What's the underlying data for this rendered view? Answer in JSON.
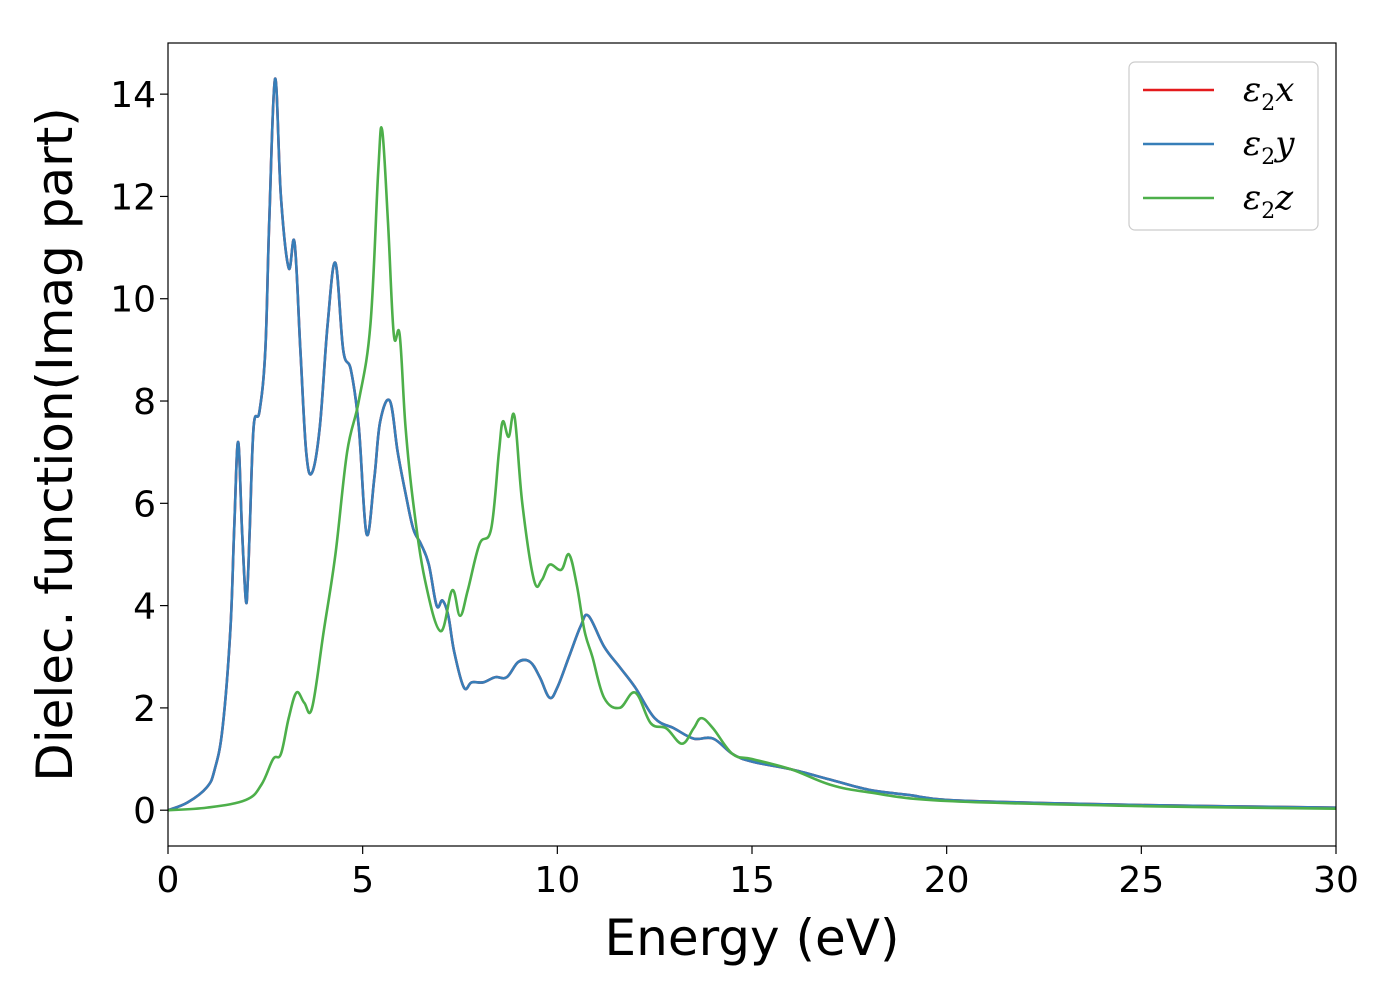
{
  "chart_data": {
    "type": "line",
    "title": "",
    "xlabel": "Energy (eV)",
    "ylabel": "Dielec. function(Imag part)",
    "xlim": [
      0,
      30
    ],
    "ylim": [
      -0.7,
      15
    ],
    "xticks": [
      0,
      5,
      10,
      15,
      20,
      25,
      30
    ],
    "yticks": [
      0,
      2,
      4,
      6,
      8,
      10,
      12,
      14
    ],
    "grid": false,
    "legend_position": "top-right",
    "legend": [
      {
        "symbol": "ε",
        "sub": "2",
        "axis": "x"
      },
      {
        "symbol": "ε",
        "sub": "2",
        "axis": "y"
      },
      {
        "symbol": "ε",
        "sub": "2",
        "axis": "z"
      }
    ],
    "series": [
      {
        "name": "ε2x",
        "color": "#e41a1c",
        "x": [
          0,
          0.5,
          1.0,
          1.2,
          1.4,
          1.6,
          1.7,
          1.8,
          1.9,
          2.0,
          2.05,
          2.1,
          2.2,
          2.35,
          2.5,
          2.6,
          2.75,
          2.9,
          3.1,
          3.25,
          3.4,
          3.55,
          3.7,
          3.9,
          4.1,
          4.3,
          4.5,
          4.7,
          4.9,
          5.1,
          5.3,
          5.45,
          5.7,
          5.9,
          6.1,
          6.3,
          6.5,
          6.7,
          6.9,
          7.05,
          7.2,
          7.35,
          7.6,
          7.8,
          8.1,
          8.4,
          8.7,
          9.0,
          9.3,
          9.55,
          9.8,
          10.0,
          10.3,
          10.6,
          10.8,
          11.2,
          11.6,
          12.0,
          12.5,
          13.0,
          13.5,
          14.0,
          14.5,
          15.0,
          16.0,
          17.0,
          18.0,
          19.0,
          20.0,
          22.0,
          25.0,
          30.0
        ],
        "y": [
          0,
          0.15,
          0.45,
          0.8,
          1.6,
          3.5,
          5.5,
          7.2,
          5.5,
          4.1,
          4.5,
          5.5,
          7.5,
          7.8,
          9.0,
          11.5,
          14.3,
          12.0,
          10.6,
          11.1,
          9.0,
          7.0,
          6.6,
          7.5,
          9.5,
          10.7,
          9.0,
          8.6,
          7.5,
          5.4,
          6.5,
          7.6,
          8.0,
          7.0,
          6.2,
          5.5,
          5.2,
          4.8,
          4.0,
          4.1,
          3.8,
          3.1,
          2.4,
          2.5,
          2.5,
          2.6,
          2.6,
          2.9,
          2.9,
          2.6,
          2.2,
          2.4,
          3.0,
          3.6,
          3.8,
          3.2,
          2.8,
          2.4,
          1.8,
          1.6,
          1.4,
          1.4,
          1.1,
          0.95,
          0.8,
          0.6,
          0.4,
          0.3,
          0.2,
          0.15,
          0.1,
          0.05
        ]
      },
      {
        "name": "ε2y",
        "color": "#377eb8",
        "x": [
          0,
          0.5,
          1.0,
          1.2,
          1.4,
          1.6,
          1.7,
          1.8,
          1.9,
          2.0,
          2.05,
          2.1,
          2.2,
          2.35,
          2.5,
          2.6,
          2.75,
          2.9,
          3.1,
          3.25,
          3.4,
          3.55,
          3.7,
          3.9,
          4.1,
          4.3,
          4.5,
          4.7,
          4.9,
          5.1,
          5.3,
          5.45,
          5.7,
          5.9,
          6.1,
          6.3,
          6.5,
          6.7,
          6.9,
          7.05,
          7.2,
          7.35,
          7.6,
          7.8,
          8.1,
          8.4,
          8.7,
          9.0,
          9.3,
          9.55,
          9.8,
          10.0,
          10.3,
          10.6,
          10.8,
          11.2,
          11.6,
          12.0,
          12.5,
          13.0,
          13.5,
          14.0,
          14.5,
          15.0,
          16.0,
          17.0,
          18.0,
          19.0,
          20.0,
          22.0,
          25.0,
          30.0
        ],
        "y": [
          0,
          0.15,
          0.45,
          0.8,
          1.6,
          3.5,
          5.5,
          7.2,
          5.5,
          4.1,
          4.5,
          5.5,
          7.5,
          7.8,
          9.0,
          11.5,
          14.3,
          12.0,
          10.6,
          11.1,
          9.0,
          7.0,
          6.6,
          7.5,
          9.5,
          10.7,
          9.0,
          8.6,
          7.5,
          5.4,
          6.5,
          7.6,
          8.0,
          7.0,
          6.2,
          5.5,
          5.2,
          4.8,
          4.0,
          4.1,
          3.8,
          3.1,
          2.4,
          2.5,
          2.5,
          2.6,
          2.6,
          2.9,
          2.9,
          2.6,
          2.2,
          2.4,
          3.0,
          3.6,
          3.8,
          3.2,
          2.8,
          2.4,
          1.8,
          1.6,
          1.4,
          1.4,
          1.1,
          0.95,
          0.8,
          0.6,
          0.4,
          0.3,
          0.2,
          0.15,
          0.1,
          0.05
        ]
      },
      {
        "name": "ε2z",
        "color": "#4daf4a",
        "x": [
          0,
          1.0,
          2.0,
          2.4,
          2.7,
          2.9,
          3.1,
          3.3,
          3.5,
          3.7,
          4.0,
          4.3,
          4.6,
          4.9,
          5.2,
          5.4,
          5.5,
          5.65,
          5.8,
          5.95,
          6.1,
          6.3,
          6.6,
          7.0,
          7.3,
          7.5,
          7.7,
          8.0,
          8.3,
          8.5,
          8.6,
          8.75,
          8.9,
          9.1,
          9.4,
          9.6,
          9.8,
          10.1,
          10.3,
          10.5,
          10.7,
          10.9,
          11.2,
          11.6,
          12.0,
          12.4,
          12.8,
          13.2,
          13.5,
          13.7,
          14.0,
          14.5,
          15.0,
          16.0,
          17.0,
          18.0,
          20.0,
          25.0,
          30.0
        ],
        "y": [
          0,
          0.05,
          0.2,
          0.5,
          1.0,
          1.1,
          1.8,
          2.3,
          2.1,
          2.0,
          3.5,
          5.0,
          7.0,
          8.0,
          9.5,
          12.5,
          13.3,
          11.5,
          9.3,
          9.3,
          7.5,
          6.0,
          4.5,
          3.5,
          4.3,
          3.8,
          4.3,
          5.2,
          5.5,
          7.0,
          7.6,
          7.3,
          7.7,
          6.0,
          4.5,
          4.5,
          4.8,
          4.7,
          5.0,
          4.4,
          3.5,
          3.0,
          2.2,
          2.0,
          2.3,
          1.7,
          1.6,
          1.3,
          1.6,
          1.8,
          1.6,
          1.1,
          1.0,
          0.8,
          0.5,
          0.35,
          0.18,
          0.08,
          0.03
        ]
      }
    ]
  }
}
